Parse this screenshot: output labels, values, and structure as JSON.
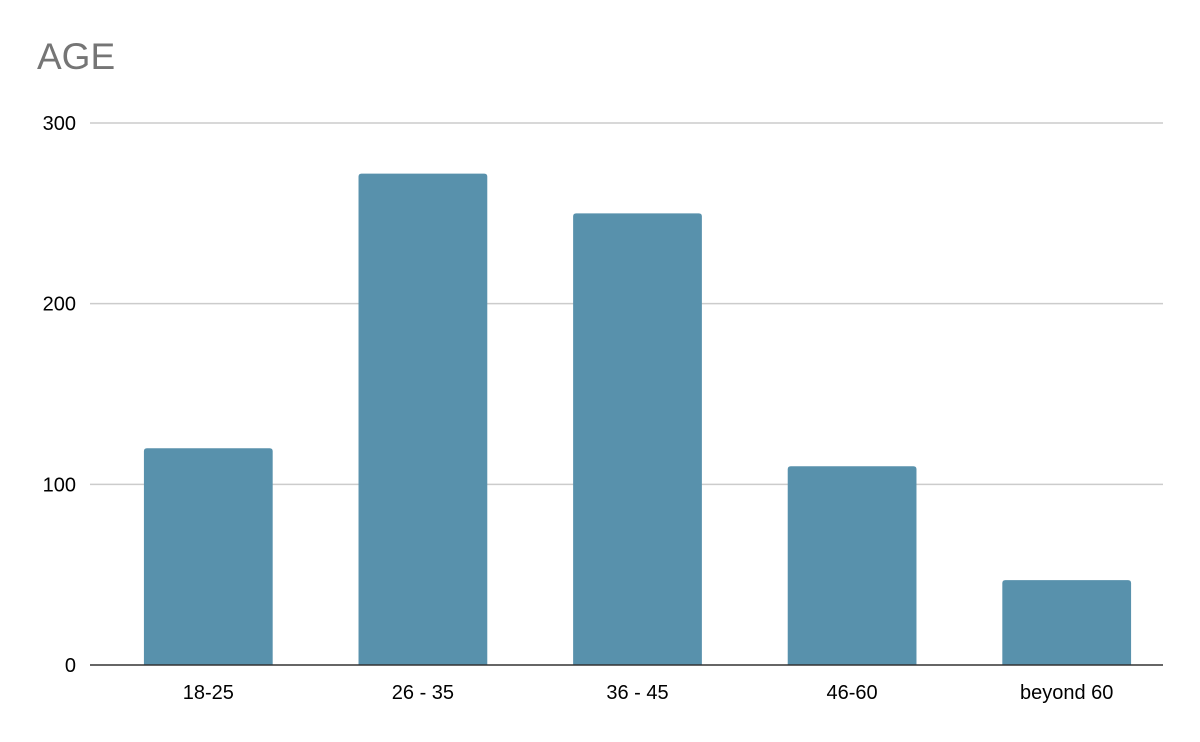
{
  "chart_data": {
    "type": "bar",
    "title": "AGE",
    "categories": [
      "18-25",
      "26 - 35",
      "36 - 45",
      "46-60",
      "beyond 60"
    ],
    "values": [
      120,
      272,
      250,
      110,
      47
    ],
    "yticks": [
      "0",
      "100",
      "200",
      "300"
    ],
    "ylim": [
      0,
      300
    ],
    "xlabel": "",
    "ylabel": "",
    "grid": true,
    "legend": "none",
    "bar_color": "#5891ac"
  }
}
